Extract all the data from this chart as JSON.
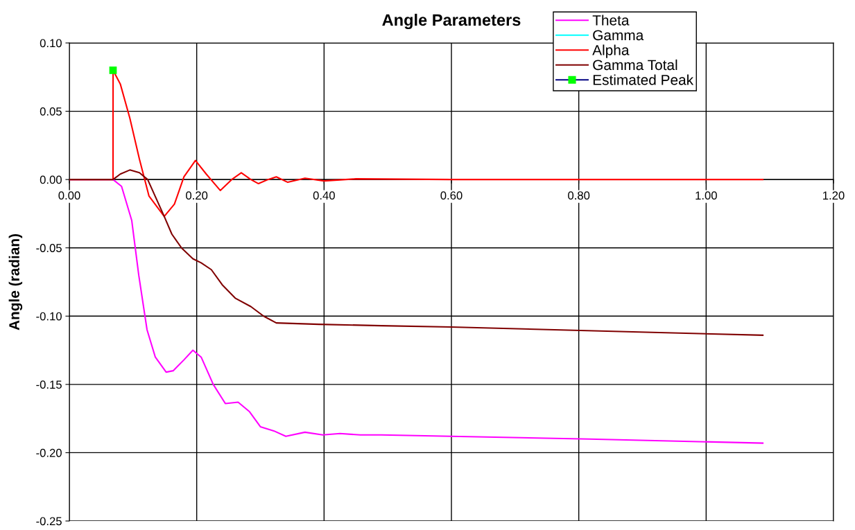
{
  "chart_data": {
    "type": "line",
    "title": "Angle Parameters",
    "ylabel": "Angle (radian)",
    "xlim": [
      0,
      1.2
    ],
    "ylim": [
      -0.25,
      0.1
    ],
    "xticks": [
      {
        "value": 0,
        "label": "0.00"
      },
      {
        "value": 0.2,
        "label": "0.20"
      },
      {
        "value": 0.4,
        "label": "0.40"
      },
      {
        "value": 0.6,
        "label": "0.60"
      },
      {
        "value": 0.8,
        "label": "0.80"
      },
      {
        "value": 1.0,
        "label": "1.00"
      },
      {
        "value": 1.2,
        "label": "1.20"
      }
    ],
    "yticks": [
      {
        "value": -0.25,
        "label": "-0.25"
      },
      {
        "value": -0.2,
        "label": "-0.20"
      },
      {
        "value": -0.15,
        "label": "-0.15"
      },
      {
        "value": -0.1,
        "label": "-0.10"
      },
      {
        "value": -0.05,
        "label": "-0.05"
      },
      {
        "value": 0,
        "label": "0.00"
      },
      {
        "value": 0.05,
        "label": "0.05"
      },
      {
        "value": 0.1,
        "label": "0.10"
      }
    ],
    "grid": true,
    "legend": "top right",
    "line_style": "solid",
    "series": [
      {
        "name": "Theta",
        "color": "#ff00ff",
        "x": [
          0,
          0.0686,
          0.082,
          0.098,
          0.109,
          0.122,
          0.135,
          0.152,
          0.163,
          0.18,
          0.194,
          0.207,
          0.226,
          0.245,
          0.265,
          0.283,
          0.3,
          0.321,
          0.34,
          0.37,
          0.398,
          0.425,
          0.457,
          0.49,
          0.599,
          0.817,
          1.089
        ],
        "values": [
          0,
          0,
          -0.005,
          -0.03,
          -0.07,
          -0.11,
          -0.13,
          -0.141,
          -0.14,
          -0.132,
          -0.125,
          -0.13,
          -0.15,
          -0.164,
          -0.163,
          -0.17,
          -0.181,
          -0.184,
          -0.188,
          -0.185,
          -0.187,
          -0.186,
          -0.187,
          -0.187,
          -0.188,
          -0.19,
          -0.193
        ]
      },
      {
        "name": "Gamma",
        "color": "#00ffff"
      },
      {
        "name": "Alpha",
        "color": "#ff0000",
        "x": [
          0,
          0.0686,
          0.0687,
          0.08,
          0.095,
          0.11,
          0.125,
          0.149,
          0.165,
          0.18,
          0.198,
          0.215,
          0.237,
          0.255,
          0.27,
          0.285,
          0.297,
          0.312,
          0.325,
          0.343,
          0.37,
          0.4,
          0.45,
          0.6,
          1.089
        ],
        "values": [
          0,
          0,
          0.08,
          0.07,
          0.045,
          0.015,
          -0.012,
          -0.027,
          -0.018,
          0.002,
          0.014,
          0.004,
          -0.008,
          0.0,
          0.005,
          0.0,
          -0.003,
          0.0,
          0.002,
          -0.002,
          0.001,
          -0.001,
          0.0005,
          0,
          0
        ]
      },
      {
        "name": "Gamma Total",
        "color": "#800000",
        "x": [
          0,
          0.0686,
          0.08,
          0.095,
          0.11,
          0.123,
          0.149,
          0.161,
          0.176,
          0.194,
          0.207,
          0.223,
          0.24,
          0.261,
          0.285,
          0.305,
          0.325,
          0.392,
          0.49,
          0.599,
          0.762,
          0.926,
          1.089
        ],
        "values": [
          0,
          0,
          0.004,
          0.007,
          0.005,
          0,
          -0.027,
          -0.04,
          -0.05,
          -0.058,
          -0.061,
          -0.066,
          -0.077,
          -0.087,
          -0.093,
          -0.1,
          -0.105,
          -0.106,
          -0.107,
          -0.108,
          -0.11,
          -0.112,
          -0.114
        ]
      },
      {
        "name": "Estimated Peak",
        "color": "#000080",
        "marker": "square",
        "colors": [
          "#00ff00"
        ],
        "x": [
          0.0686
        ],
        "values": [
          0.08
        ]
      }
    ]
  }
}
